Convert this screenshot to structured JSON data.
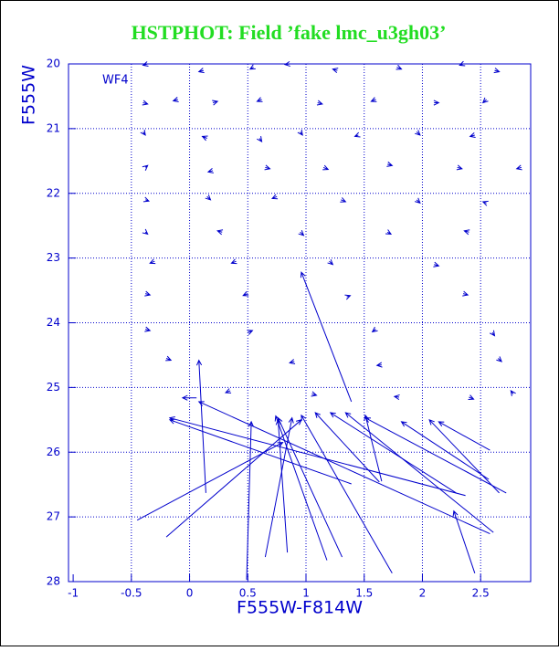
{
  "chart_data": {
    "type": "quiver",
    "title": "HSTPHOT: Field ’fake lmc_u3gh03’",
    "annotation": "WF4",
    "xlabel": "F555W-F814W",
    "ylabel": "F555W",
    "xlim": [
      -1.04,
      2.93
    ],
    "ylim": [
      28,
      20
    ],
    "xticks": [
      -1,
      -0.5,
      0,
      0.5,
      1,
      1.5,
      2,
      2.5
    ],
    "yticks": [
      20,
      21,
      22,
      23,
      24,
      25,
      26,
      27,
      28
    ],
    "grid": true,
    "series": [
      {
        "color": "#0000cc",
        "x": [
          2.37,
          1.39,
          2.58,
          0.14,
          1.18,
          1.31,
          1.74,
          1.63,
          2.29,
          2.61,
          2.72,
          2.66,
          2.58,
          2.45,
          1.39,
          -0.45,
          -0.2,
          0.65,
          0.49,
          0.84,
          1.65,
          2.57,
          0.06,
          -0.36,
          0.12,
          0.55,
          0.86,
          1.27,
          1.78,
          2.35,
          2.62,
          -0.4,
          -0.1,
          0.2,
          0.62,
          1.1,
          1.6,
          2.1,
          2.55,
          -0.4,
          0.15,
          0.6,
          0.95,
          1.45,
          1.95,
          2.45,
          -0.38,
          0.2,
          0.65,
          1.15,
          1.7,
          2.3,
          2.85,
          -0.38,
          0.15,
          0.75,
          1.3,
          1.95,
          2.55,
          -0.38,
          0.28,
          0.95,
          1.7,
          2.4,
          -0.3,
          0.4,
          1.2,
          2.1,
          -0.38,
          0.5,
          1.35,
          2.35,
          -0.38,
          0.5,
          1.6,
          2.6,
          -0.2,
          0.9,
          1.65,
          2.65,
          0.35,
          1.05,
          1.8,
          2.4,
          2.78
        ],
        "y": [
          26.67,
          26.49,
          27.26,
          26.63,
          27.67,
          27.62,
          27.87,
          26.46,
          26.63,
          27.24,
          26.63,
          26.63,
          25.97,
          27.87,
          25.22,
          27.05,
          27.31,
          27.62,
          27.97,
          27.55,
          26.45,
          26.42,
          25.16,
          20.0,
          20.1,
          20.05,
          20.0,
          20.1,
          20.05,
          20.0,
          20.1,
          20.6,
          20.55,
          20.6,
          20.55,
          20.6,
          20.55,
          20.6,
          20.55,
          21.05,
          21.15,
          21.15,
          21.05,
          21.1,
          21.05,
          21.1,
          21.6,
          21.65,
          21.6,
          21.6,
          21.55,
          21.6,
          21.6,
          22.1,
          22.05,
          22.05,
          22.1,
          22.1,
          22.15,
          22.6,
          22.6,
          22.6,
          22.6,
          22.6,
          23.05,
          23.05,
          23.05,
          23.1,
          23.55,
          23.55,
          23.6,
          23.55,
          24.1,
          24.15,
          24.1,
          24.15,
          24.55,
          24.6,
          24.65,
          24.55,
          25.05,
          25.1,
          25.15,
          25.15,
          25.1
        ],
        "x2": [
          -0.17,
          -0.17,
          0.08,
          0.08,
          0.74,
          0.76,
          0.96,
          1.08,
          1.21,
          1.34,
          1.51,
          2.06,
          2.14,
          2.27,
          0.96,
          0.8,
          0.96,
          0.88,
          0.53,
          0.76,
          1.51,
          1.82,
          -0.06,
          -0.4,
          0.08,
          0.52,
          0.82,
          1.23,
          1.82,
          2.32,
          2.66,
          -0.36,
          -0.14,
          0.24,
          0.58,
          1.14,
          1.56,
          2.14,
          2.52,
          -0.38,
          0.11,
          0.62,
          0.97,
          1.42,
          1.98,
          2.41,
          -0.36,
          0.16,
          0.69,
          1.19,
          1.74,
          2.34,
          2.81,
          -0.35,
          0.18,
          0.71,
          1.34,
          1.98,
          2.52,
          -0.36,
          0.24,
          0.98,
          1.73,
          2.36,
          -0.34,
          0.36,
          1.23,
          2.14,
          -0.34,
          0.46,
          1.38,
          2.39,
          -0.34,
          0.54,
          1.57,
          2.62,
          -0.16,
          0.86,
          1.61,
          2.68,
          0.31,
          1.09,
          1.76,
          2.44,
          2.76
        ],
        "y2": [
          25.47,
          25.5,
          25.22,
          24.58,
          25.44,
          25.47,
          25.43,
          25.39,
          25.39,
          25.39,
          25.47,
          25.5,
          25.53,
          26.91,
          23.22,
          25.85,
          25.5,
          25.47,
          25.53,
          25.5,
          25.43,
          25.53,
          25.16,
          20.02,
          20.12,
          20.08,
          20.01,
          20.08,
          20.08,
          20.02,
          20.12,
          20.62,
          20.57,
          20.58,
          20.58,
          20.62,
          20.58,
          20.6,
          20.6,
          21.1,
          21.12,
          21.2,
          21.1,
          21.12,
          21.1,
          21.12,
          21.57,
          21.67,
          21.62,
          21.63,
          21.57,
          21.62,
          21.62,
          22.12,
          22.1,
          22.08,
          22.13,
          22.15,
          22.13,
          22.63,
          22.58,
          22.65,
          22.63,
          22.58,
          23.08,
          23.08,
          23.1,
          23.12,
          23.57,
          23.58,
          23.58,
          23.57,
          24.12,
          24.12,
          24.14,
          24.2,
          24.58,
          24.62,
          24.66,
          24.6,
          25.08,
          25.12,
          25.14,
          25.18,
          25.05
        ]
      }
    ]
  }
}
